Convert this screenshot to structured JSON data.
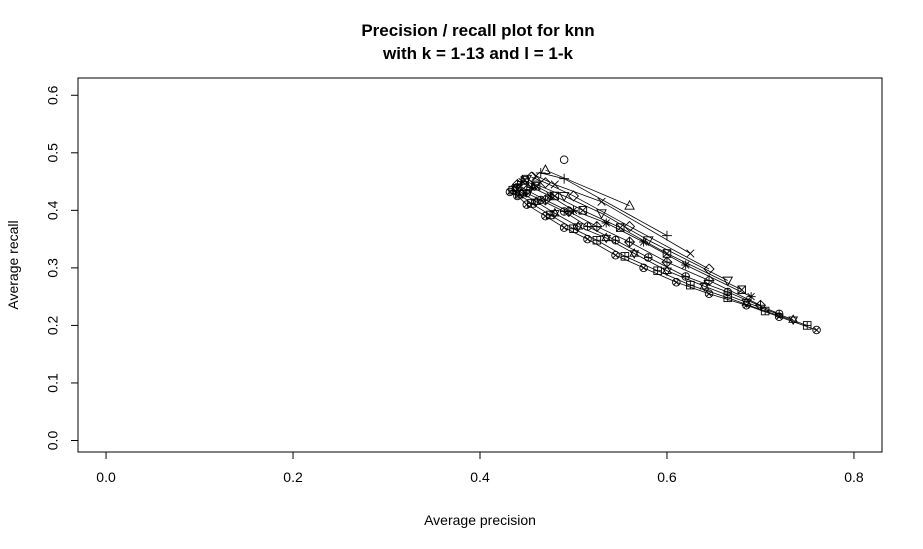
{
  "chart_data": {
    "type": "scatter",
    "title_line1": "Precision / recall plot for knn",
    "title_line2": "with k = 1-13 and l = 1-k",
    "xlabel": "Average precision",
    "ylabel": "Average recall",
    "xlim": [
      -0.03,
      0.83
    ],
    "ylim": [
      -0.02,
      0.63
    ],
    "x_ticks": [
      0.0,
      0.2,
      0.4,
      0.6,
      0.8
    ],
    "x_tick_labels": [
      "0.0",
      "0.2",
      "0.4",
      "0.6",
      "0.8"
    ],
    "y_ticks": [
      0.0,
      0.1,
      0.2,
      0.3,
      0.4,
      0.5,
      0.6
    ],
    "y_tick_labels": [
      "0.0",
      "0.1",
      "0.2",
      "0.3",
      "0.4",
      "0.5",
      "0.6"
    ],
    "grid": false,
    "legend": "none",
    "series": [
      {
        "k": 1,
        "symbol": "circle",
        "points": [
          [
            0.49,
            0.488
          ]
        ]
      },
      {
        "k": 2,
        "symbol": "triangle",
        "points": [
          [
            0.47,
            0.47
          ],
          [
            0.56,
            0.408
          ]
        ]
      },
      {
        "k": 3,
        "symbol": "plus",
        "points": [
          [
            0.465,
            0.465
          ],
          [
            0.49,
            0.455
          ],
          [
            0.6,
            0.356
          ]
        ]
      },
      {
        "k": 4,
        "symbol": "cross",
        "points": [
          [
            0.46,
            0.46
          ],
          [
            0.48,
            0.445
          ],
          [
            0.53,
            0.415
          ],
          [
            0.625,
            0.325
          ]
        ]
      },
      {
        "k": 5,
        "symbol": "diamond",
        "points": [
          [
            0.455,
            0.458
          ],
          [
            0.47,
            0.448
          ],
          [
            0.5,
            0.425
          ],
          [
            0.56,
            0.372
          ],
          [
            0.645,
            0.298
          ]
        ]
      },
      {
        "k": 6,
        "symbol": "triangle-down",
        "points": [
          [
            0.45,
            0.455
          ],
          [
            0.46,
            0.445
          ],
          [
            0.49,
            0.425
          ],
          [
            0.53,
            0.395
          ],
          [
            0.58,
            0.348
          ],
          [
            0.665,
            0.278
          ]
        ]
      },
      {
        "k": 7,
        "symbol": "square-x",
        "points": [
          [
            0.448,
            0.452
          ],
          [
            0.46,
            0.442
          ],
          [
            0.48,
            0.425
          ],
          [
            0.51,
            0.4
          ],
          [
            0.55,
            0.37
          ],
          [
            0.6,
            0.325
          ],
          [
            0.68,
            0.262
          ]
        ]
      },
      {
        "k": 8,
        "symbol": "asterisk",
        "points": [
          [
            0.445,
            0.45
          ],
          [
            0.455,
            0.44
          ],
          [
            0.475,
            0.425
          ],
          [
            0.5,
            0.4
          ],
          [
            0.535,
            0.378
          ],
          [
            0.575,
            0.345
          ],
          [
            0.62,
            0.305
          ],
          [
            0.69,
            0.25
          ]
        ]
      },
      {
        "k": 9,
        "symbol": "diamond-plus",
        "points": [
          [
            0.44,
            0.445
          ],
          [
            0.45,
            0.435
          ],
          [
            0.47,
            0.418
          ],
          [
            0.495,
            0.398
          ],
          [
            0.525,
            0.372
          ],
          [
            0.56,
            0.345
          ],
          [
            0.6,
            0.31
          ],
          [
            0.645,
            0.278
          ],
          [
            0.7,
            0.235
          ]
        ]
      },
      {
        "k": 10,
        "symbol": "circle-plus",
        "points": [
          [
            0.44,
            0.44
          ],
          [
            0.45,
            0.43
          ],
          [
            0.465,
            0.418
          ],
          [
            0.49,
            0.398
          ],
          [
            0.515,
            0.372
          ],
          [
            0.545,
            0.348
          ],
          [
            0.58,
            0.318
          ],
          [
            0.62,
            0.285
          ],
          [
            0.665,
            0.258
          ],
          [
            0.72,
            0.22
          ]
        ]
      },
      {
        "k": 11,
        "symbol": "star",
        "points": [
          [
            0.438,
            0.438
          ],
          [
            0.445,
            0.43
          ],
          [
            0.46,
            0.415
          ],
          [
            0.48,
            0.395
          ],
          [
            0.505,
            0.372
          ],
          [
            0.535,
            0.352
          ],
          [
            0.565,
            0.325
          ],
          [
            0.6,
            0.295
          ],
          [
            0.64,
            0.268
          ],
          [
            0.685,
            0.24
          ],
          [
            0.735,
            0.21
          ]
        ]
      },
      {
        "k": 12,
        "symbol": "square-plus",
        "points": [
          [
            0.435,
            0.435
          ],
          [
            0.442,
            0.428
          ],
          [
            0.455,
            0.412
          ],
          [
            0.475,
            0.392
          ],
          [
            0.5,
            0.368
          ],
          [
            0.525,
            0.348
          ],
          [
            0.555,
            0.32
          ],
          [
            0.59,
            0.295
          ],
          [
            0.625,
            0.27
          ],
          [
            0.665,
            0.248
          ],
          [
            0.705,
            0.225
          ],
          [
            0.75,
            0.2
          ]
        ]
      },
      {
        "k": 13,
        "symbol": "circle-x",
        "points": [
          [
            0.432,
            0.432
          ],
          [
            0.44,
            0.425
          ],
          [
            0.45,
            0.41
          ],
          [
            0.47,
            0.39
          ],
          [
            0.49,
            0.37
          ],
          [
            0.515,
            0.35
          ],
          [
            0.545,
            0.322
          ],
          [
            0.575,
            0.3
          ],
          [
            0.61,
            0.275
          ],
          [
            0.645,
            0.255
          ],
          [
            0.685,
            0.235
          ],
          [
            0.72,
            0.215
          ],
          [
            0.76,
            0.192
          ]
        ]
      }
    ]
  }
}
